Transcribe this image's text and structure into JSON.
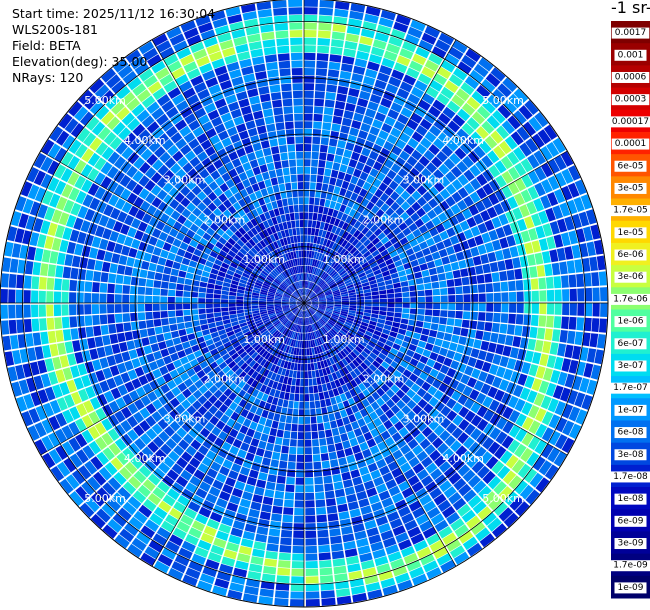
{
  "info": {
    "start_time": "Start time: 2025/11/12 16:30:04",
    "instrument": "WLS200s-181",
    "field": "Field: BETA",
    "elevation": "Elevation(deg): 35.00",
    "nrays": "NRays: 120"
  },
  "colorbar": {
    "title": "-1 sr-",
    "labels": [
      "0.0017",
      "0.001",
      "0.0006",
      "0.0003",
      "0.00017",
      "0.0001",
      "6e-05",
      "3e-05",
      "1.7e-05",
      "1e-05",
      "6e-06",
      "3e-06",
      "1.7e-06",
      "1e-06",
      "6e-07",
      "3e-07",
      "1.7e-07",
      "1e-07",
      "6e-08",
      "3e-08",
      "1.7e-08",
      "1e-08",
      "6e-09",
      "3e-09",
      "1.7e-09",
      "1e-09"
    ],
    "colors": [
      "#7f0000",
      "#9a0000",
      "#b50000",
      "#d40000",
      "#ee0000",
      "#ff2200",
      "#ff5500",
      "#ff8800",
      "#ffb000",
      "#ffd800",
      "#f0f020",
      "#c8ff40",
      "#8cff70",
      "#50ffa0",
      "#20f0d0",
      "#00dcf0",
      "#00c0ff",
      "#0098ff",
      "#0070f0",
      "#0048e0",
      "#0020d0",
      "#0008c0",
      "#0000b0",
      "#000098",
      "#000080",
      "#00006a"
    ]
  },
  "chart_data": {
    "type": "heatmap",
    "projection": "polar-ppi",
    "n_rays": 120,
    "max_range_km": 5.4,
    "range_rings_km": [
      1,
      2,
      3,
      4,
      5
    ],
    "ring_labels": [
      "1.00km",
      "2.00km",
      "3.00km",
      "4.00km",
      "5.00km"
    ],
    "aerosol_layer_range_km": 4.6,
    "aerosol_layer_value": "1.7e-06",
    "background_value": "6e-08",
    "near_range_value": "1e-08"
  }
}
